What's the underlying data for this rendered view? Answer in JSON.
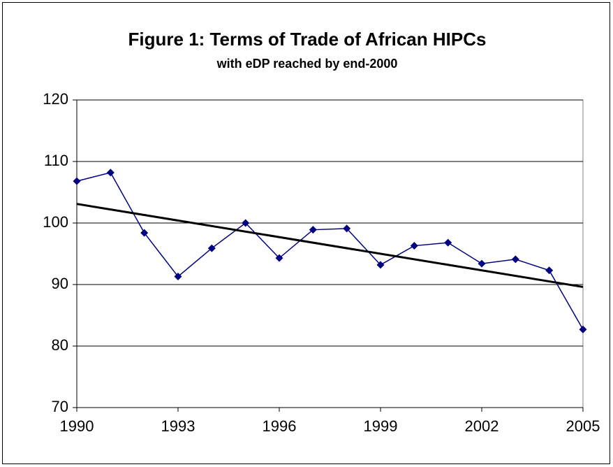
{
  "chart_data": {
    "type": "line",
    "title": "Figure 1: Terms of Trade of African HIPCs",
    "subtitle": "with eDP reached by end-2000",
    "x": [
      1990,
      1991,
      1992,
      1993,
      1994,
      1995,
      1996,
      1997,
      1998,
      1999,
      2000,
      2001,
      2002,
      2003,
      2004,
      2005
    ],
    "series": [
      {
        "color": "#000080",
        "values": [
          106.8,
          108.2,
          98.4,
          91.3,
          95.9,
          100.0,
          94.3,
          98.9,
          99.1,
          93.2,
          96.3,
          96.8,
          93.4,
          94.1,
          92.3,
          82.7
        ]
      }
    ],
    "trendline": "linear",
    "trendline_color": "#000000",
    "xlim": [
      1990,
      2005
    ],
    "xticks": [
      1990,
      1993,
      1996,
      1999,
      2002,
      2005
    ],
    "ylim": [
      70,
      120
    ],
    "yticks": [
      70,
      80,
      90,
      100,
      110,
      120
    ],
    "grid": true
  }
}
